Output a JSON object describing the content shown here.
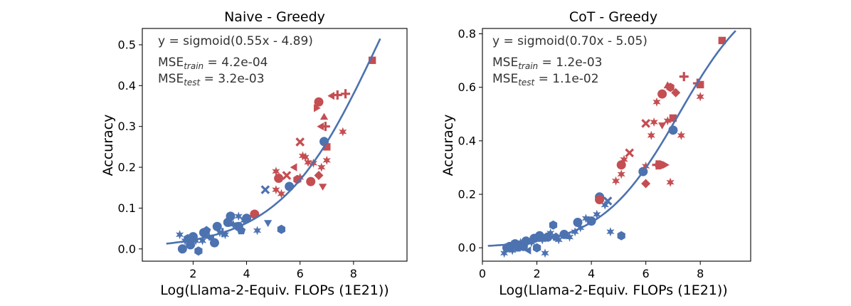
{
  "colors": {
    "blue": "#4C72B0",
    "red": "#C44E52"
  },
  "chart_data": [
    {
      "type": "scatter",
      "title": "Naive - Greedy",
      "xlabel": "Log(Llama-2-Equiv. FLOPs (1E21))",
      "ylabel": "Accuracy",
      "xlim": [
        0.1,
        10.0
      ],
      "ylim": [
        -0.03,
        0.54
      ],
      "xticks": [
        2,
        4,
        6,
        8
      ],
      "yticks": [
        0.0,
        0.1,
        0.2,
        0.3,
        0.4,
        0.5
      ],
      "xtick_labels": [
        "2",
        "4",
        "6",
        "8"
      ],
      "ytick_labels": [
        "0.0",
        "0.1",
        "0.2",
        "0.3",
        "0.4",
        "0.5"
      ],
      "fit": {
        "a": 0.55,
        "b": -4.89,
        "x_range": [
          1.0,
          9.0
        ]
      },
      "annotations": {
        "equation": "y = sigmoid(0.55x - 4.89)",
        "mse_train_label": "MSE",
        "mse_train_sub": "train",
        "mse_train_value": " = 4.2e-04",
        "mse_test_label": "MSE",
        "mse_test_sub": "test",
        "mse_test_value": " = 3.2e-03"
      },
      "series": [
        {
          "name": "train",
          "color": "blue",
          "points": [
            [
              1.6,
              0.0,
              "circle"
            ],
            [
              1.5,
              0.035,
              "star"
            ],
            [
              1.7,
              0.02,
              "star"
            ],
            [
              1.9,
              0.01,
              "circle"
            ],
            [
              1.8,
              0.025,
              "hexagon"
            ],
            [
              2.0,
              0.03,
              "circle"
            ],
            [
              2.1,
              0.02,
              "star"
            ],
            [
              2.2,
              -0.005,
              "hexagon"
            ],
            [
              2.4,
              0.04,
              "circle"
            ],
            [
              2.5,
              0.045,
              "pentagon"
            ],
            [
              2.6,
              0.03,
              "star"
            ],
            [
              2.8,
              0.015,
              "circle"
            ],
            [
              2.9,
              0.055,
              "circle"
            ],
            [
              3.0,
              0.04,
              "star"
            ],
            [
              2.7,
              0.025,
              "triangle_left"
            ],
            [
              3.2,
              0.035,
              "star"
            ],
            [
              3.3,
              0.065,
              "circle"
            ],
            [
              3.5,
              0.06,
              "star"
            ],
            [
              3.7,
              0.055,
              "circle"
            ],
            [
              3.8,
              0.045,
              "pentagon"
            ],
            [
              3.9,
              0.07,
              "star"
            ],
            [
              4.0,
              0.075,
              "circle"
            ],
            [
              3.7,
              0.08,
              "star"
            ],
            [
              3.4,
              0.08,
              "circle"
            ],
            [
              4.4,
              0.045,
              "star"
            ],
            [
              4.7,
              0.145,
              "x"
            ],
            [
              4.8,
              0.065,
              "triangle_down"
            ],
            [
              5.3,
              0.048,
              "hexagon"
            ],
            [
              5.6,
              0.153,
              "circle"
            ],
            [
              6.9,
              0.263,
              "circle"
            ],
            [
              2.35,
              0.02,
              "star"
            ],
            [
              3.1,
              0.04,
              "plus"
            ]
          ]
        },
        {
          "name": "test",
          "color": "red",
          "points": [
            [
              4.3,
              0.085,
              "circle"
            ],
            [
              5.1,
              0.19,
              "star"
            ],
            [
              5.2,
              0.173,
              "circle"
            ],
            [
              5.5,
              0.18,
              "x"
            ],
            [
              5.1,
              0.145,
              "star"
            ],
            [
              5.3,
              0.135,
              "star"
            ],
            [
              5.8,
              0.2,
              "triangle_left"
            ],
            [
              5.9,
              0.17,
              "hexagon"
            ],
            [
              6.0,
              0.175,
              "star"
            ],
            [
              6.2,
              0.225,
              "star"
            ],
            [
              6.3,
              0.212,
              "star"
            ],
            [
              6.4,
              0.165,
              "circle"
            ],
            [
              6.5,
              0.21,
              "star"
            ],
            [
              6.7,
              0.18,
              "diamond"
            ],
            [
              6.8,
              0.2,
              "star"
            ],
            [
              6.85,
              0.154,
              "triangle_down"
            ],
            [
              7.0,
              0.217,
              "star"
            ],
            [
              7.0,
              0.25,
              "square"
            ],
            [
              6.0,
              0.262,
              "x"
            ],
            [
              6.1,
              0.228,
              "star"
            ],
            [
              6.7,
              0.36,
              "circle"
            ],
            [
              6.6,
              0.345,
              "triangle_right"
            ],
            [
              6.9,
              0.322,
              "triangle_up"
            ],
            [
              6.95,
              0.3,
              "plus"
            ],
            [
              6.8,
              0.3,
              "triangle_left"
            ],
            [
              7.2,
              0.375,
              "triangle_left"
            ],
            [
              7.4,
              0.377,
              "plus"
            ],
            [
              7.7,
              0.38,
              "plus"
            ],
            [
              7.6,
              0.287,
              "star"
            ],
            [
              8.7,
              0.462,
              "square"
            ]
          ]
        }
      ]
    },
    {
      "type": "scatter",
      "title": "CoT - Greedy",
      "xlabel": "Log(Llama-2-Equiv. FLOPs (1E21))",
      "ylabel": "Accuracy",
      "xlim": [
        0.0,
        9.85
      ],
      "ylim": [
        -0.05,
        0.82
      ],
      "xticks": [
        0,
        2,
        4,
        6,
        8
      ],
      "yticks": [
        0.0,
        0.2,
        0.4,
        0.6,
        0.8
      ],
      "xtick_labels": [
        "0",
        "2",
        "4",
        "6",
        "8"
      ],
      "ytick_labels": [
        "0.0",
        "0.2",
        "0.4",
        "0.6",
        "0.8"
      ],
      "fit": {
        "a": 0.7,
        "b": -5.05,
        "x_range": [
          0.2,
          9.3
        ]
      },
      "annotations": {
        "equation": "y = sigmoid(0.70x - 5.05)",
        "mse_train_label": "MSE",
        "mse_train_sub": "train",
        "mse_train_value": " = 1.2e-03",
        "mse_test_label": "MSE",
        "mse_test_sub": "test",
        "mse_test_value": " = 1.1e-02"
      },
      "series": [
        {
          "name": "train",
          "color": "blue",
          "points": [
            [
              0.8,
              -0.02,
              "star"
            ],
            [
              0.9,
              0.0,
              "circle"
            ],
            [
              1.0,
              0.005,
              "circle"
            ],
            [
              1.1,
              -0.01,
              "star"
            ],
            [
              1.2,
              0.015,
              "circle"
            ],
            [
              1.3,
              0.0,
              "pentagon"
            ],
            [
              1.4,
              0.02,
              "star"
            ],
            [
              1.5,
              0.005,
              "circle"
            ],
            [
              1.6,
              0.025,
              "circle"
            ],
            [
              1.8,
              0.02,
              "star"
            ],
            [
              1.9,
              0.035,
              "circle"
            ],
            [
              2.0,
              0.0,
              "hexagon"
            ],
            [
              2.1,
              0.045,
              "circle"
            ],
            [
              2.2,
              0.03,
              "star"
            ],
            [
              2.3,
              -0.02,
              "star"
            ],
            [
              2.4,
              0.04,
              "circle"
            ],
            [
              2.5,
              0.055,
              "star"
            ],
            [
              2.6,
              0.085,
              "hexagon"
            ],
            [
              2.8,
              0.03,
              "star"
            ],
            [
              3.0,
              0.05,
              "circle"
            ],
            [
              3.2,
              0.04,
              "star"
            ],
            [
              3.4,
              0.06,
              "star"
            ],
            [
              3.5,
              0.095,
              "circle"
            ],
            [
              3.6,
              0.075,
              "star"
            ],
            [
              3.8,
              0.11,
              "star"
            ],
            [
              4.0,
              0.1,
              "circle"
            ],
            [
              4.2,
              0.125,
              "star"
            ],
            [
              4.3,
              0.19,
              "circle"
            ],
            [
              4.5,
              0.16,
              "star"
            ],
            [
              4.6,
              0.175,
              "x"
            ],
            [
              4.7,
              0.06,
              "star"
            ],
            [
              5.1,
              0.045,
              "hexagon"
            ],
            [
              5.9,
              0.285,
              "circle"
            ],
            [
              7.0,
              0.44,
              "circle"
            ],
            [
              1.1,
              0.01,
              "plus"
            ],
            [
              1.7,
              -0.01,
              "triangle_left"
            ],
            [
              2.7,
              0.04,
              "pentagon"
            ]
          ]
        },
        {
          "name": "test",
          "color": "red",
          "points": [
            [
              4.3,
              0.18,
              "circle"
            ],
            [
              4.9,
              0.25,
              "star"
            ],
            [
              5.1,
              0.31,
              "circle"
            ],
            [
              5.1,
              0.275,
              "star"
            ],
            [
              5.4,
              0.355,
              "x"
            ],
            [
              5.2,
              0.33,
              "star"
            ],
            [
              6.0,
              0.305,
              "star"
            ],
            [
              6.0,
              0.465,
              "x"
            ],
            [
              6.0,
              0.24,
              "diamond"
            ],
            [
              6.2,
              0.42,
              "star"
            ],
            [
              6.3,
              0.47,
              "star"
            ],
            [
              6.4,
              0.31,
              "plus"
            ],
            [
              6.5,
              0.31,
              "circle"
            ],
            [
              6.7,
              0.31,
              "triangle_right"
            ],
            [
              6.6,
              0.46,
              "triangle_down"
            ],
            [
              6.8,
              0.475,
              "star"
            ],
            [
              6.9,
              0.245,
              "star"
            ],
            [
              7.0,
              0.485,
              "square"
            ],
            [
              7.3,
              0.42,
              "star"
            ],
            [
              6.9,
              0.6,
              "hexagon"
            ],
            [
              6.6,
              0.575,
              "circle"
            ],
            [
              6.8,
              0.605,
              "triangle_up"
            ],
            [
              7.1,
              0.58,
              "diamond"
            ],
            [
              7.4,
              0.64,
              "plus"
            ],
            [
              7.9,
              0.615,
              "plus"
            ],
            [
              8.0,
              0.565,
              "star"
            ],
            [
              8.0,
              0.61,
              "square"
            ],
            [
              8.8,
              0.775,
              "square"
            ],
            [
              6.4,
              0.545,
              "star"
            ]
          ]
        }
      ]
    }
  ]
}
